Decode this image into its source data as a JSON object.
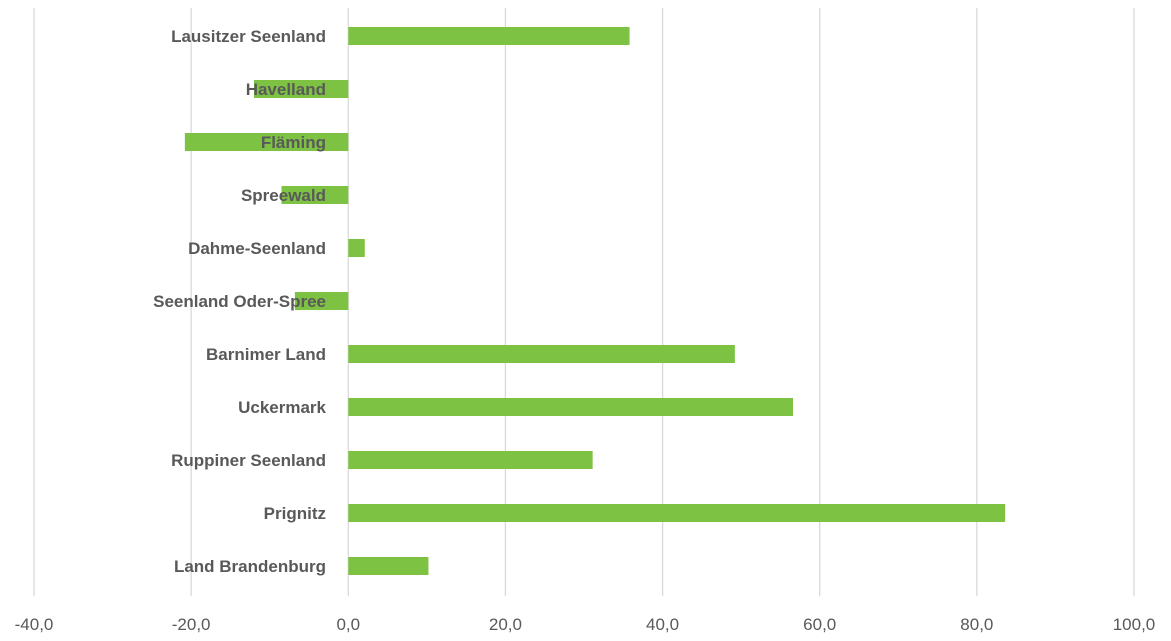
{
  "chart_data": {
    "type": "bar",
    "orientation": "horizontal",
    "categories": [
      "Lausitzer Seenland",
      "Havelland",
      "Fläming",
      "Spreewald",
      "Dahme-Seenland",
      "Seenland Oder-Spree",
      "Barnimer Land",
      "Uckermark",
      "Ruppiner Seenland",
      "Prignitz",
      "Land Brandenburg"
    ],
    "values": [
      35.8,
      -12.0,
      -20.8,
      -8.5,
      2.1,
      -6.8,
      49.2,
      56.6,
      31.1,
      83.6,
      10.2
    ],
    "xlim": [
      -40,
      100
    ],
    "x_ticks": [
      "-40,0",
      "-20,0",
      "0,0",
      "20,0",
      "40,0",
      "60,0",
      "80,0",
      "100,0"
    ],
    "x_tick_values": [
      -40,
      -20,
      0,
      20,
      40,
      60,
      80,
      100
    ],
    "grid": true,
    "legend": "none",
    "colors": {
      "bar": "#7DC242",
      "grid": "#D9D9D9",
      "text": "#595959"
    }
  }
}
